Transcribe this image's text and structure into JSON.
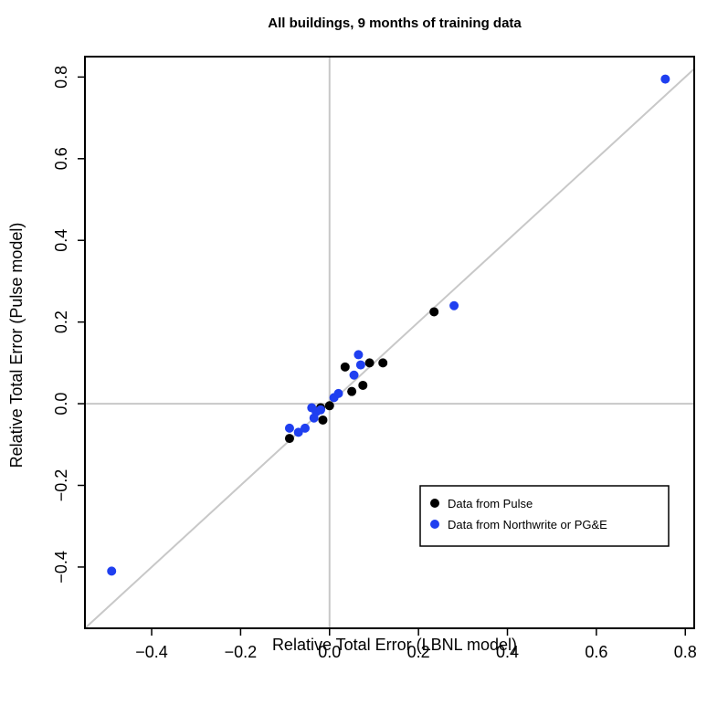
{
  "chart_data": {
    "type": "scatter",
    "title": "All buildings, 9 months of training data",
    "xlabel": "Relative Total Error (LBNL model)",
    "ylabel": "Relative Total Error (Pulse model)",
    "xlim": [
      -0.55,
      0.82
    ],
    "ylim": [
      -0.55,
      0.85
    ],
    "x_ticks": [
      "-0.4",
      "-0.2",
      "0.0",
      "0.2",
      "0.4",
      "0.6",
      "0.8"
    ],
    "y_ticks": [
      "-0.4",
      "-0.2",
      "0.0",
      "0.2",
      "0.4",
      "0.6",
      "0.8"
    ],
    "reference_lines": [
      "x = 0",
      "y = 0",
      "y = x"
    ],
    "legend_position": "lower-right",
    "series": [
      {
        "name": "Data from Pulse",
        "color": "#000000",
        "points": [
          {
            "x": -0.09,
            "y": -0.085
          },
          {
            "x": -0.015,
            "y": -0.04
          },
          {
            "x": -0.02,
            "y": -0.01
          },
          {
            "x": 0.0,
            "y": -0.005
          },
          {
            "x": 0.035,
            "y": 0.09
          },
          {
            "x": 0.05,
            "y": 0.03
          },
          {
            "x": 0.075,
            "y": 0.045
          },
          {
            "x": 0.09,
            "y": 0.1
          },
          {
            "x": 0.12,
            "y": 0.1
          },
          {
            "x": 0.235,
            "y": 0.225
          }
        ]
      },
      {
        "name": "Data from Northwrite or PG&E",
        "color": "#1f3ff0",
        "points": [
          {
            "x": -0.49,
            "y": -0.41
          },
          {
            "x": -0.09,
            "y": -0.06
          },
          {
            "x": -0.07,
            "y": -0.07
          },
          {
            "x": -0.055,
            "y": -0.06
          },
          {
            "x": -0.04,
            "y": -0.01
          },
          {
            "x": -0.035,
            "y": -0.035
          },
          {
            "x": -0.03,
            "y": -0.02
          },
          {
            "x": -0.02,
            "y": -0.015
          },
          {
            "x": 0.01,
            "y": 0.015
          },
          {
            "x": 0.02,
            "y": 0.025
          },
          {
            "x": 0.055,
            "y": 0.07
          },
          {
            "x": 0.065,
            "y": 0.12
          },
          {
            "x": 0.07,
            "y": 0.095
          },
          {
            "x": 0.28,
            "y": 0.24
          },
          {
            "x": 0.755,
            "y": 0.795
          }
        ]
      }
    ]
  }
}
